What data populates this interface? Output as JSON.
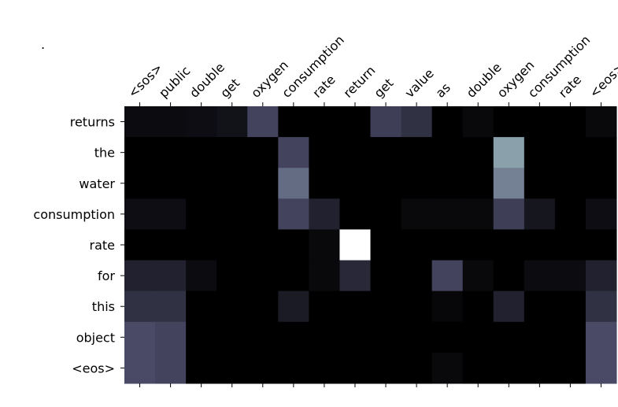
{
  "chart_data": {
    "type": "heatmap",
    "title": ".",
    "x_categories": [
      "<sos>",
      "public",
      "double",
      "get",
      "oxygen",
      "consumption",
      "rate",
      "return",
      "get",
      "value",
      "as",
      "double",
      "oxygen",
      "consumption",
      "rate",
      "<eos>"
    ],
    "y_categories": [
      "returns",
      "the",
      "water",
      "consumption",
      "rate",
      "for",
      "this",
      "object",
      "<eos>"
    ],
    "colormap": "bone",
    "values": [
      [
        0.05,
        0.05,
        0.06,
        0.08,
        0.3,
        0,
        0,
        0,
        0.28,
        0.22,
        0,
        0.04,
        0,
        0,
        0,
        0.04
      ],
      [
        0,
        0,
        0,
        0,
        0,
        0.3,
        0,
        0,
        0,
        0,
        0,
        0,
        0.62,
        0,
        0,
        0
      ],
      [
        0,
        0,
        0,
        0,
        0,
        0.45,
        0,
        0,
        0,
        0,
        0,
        0,
        0.52,
        0,
        0,
        0
      ],
      [
        0.06,
        0.06,
        0,
        0,
        0,
        0.3,
        0.15,
        0,
        0,
        0.04,
        0.04,
        0.04,
        0.28,
        0.1,
        0,
        0.06
      ],
      [
        0,
        0,
        0,
        0,
        0,
        0,
        0.04,
        1.0,
        0,
        0,
        0,
        0,
        0,
        0,
        0,
        0
      ],
      [
        0.15,
        0.15,
        0.05,
        0,
        0,
        0,
        0.04,
        0.18,
        0,
        0,
        0.3,
        0.04,
        0,
        0.05,
        0.05,
        0.15
      ],
      [
        0.22,
        0.22,
        0,
        0,
        0,
        0.12,
        0,
        0,
        0,
        0,
        0.03,
        0,
        0.15,
        0,
        0,
        0.22
      ],
      [
        0.33,
        0.3,
        0,
        0,
        0,
        0,
        0,
        0,
        0,
        0,
        0,
        0,
        0,
        0,
        0,
        0.33
      ],
      [
        0.33,
        0.3,
        0,
        0,
        0,
        0,
        0,
        0,
        0,
        0,
        0.04,
        0,
        0,
        0,
        0,
        0.33
      ]
    ]
  }
}
